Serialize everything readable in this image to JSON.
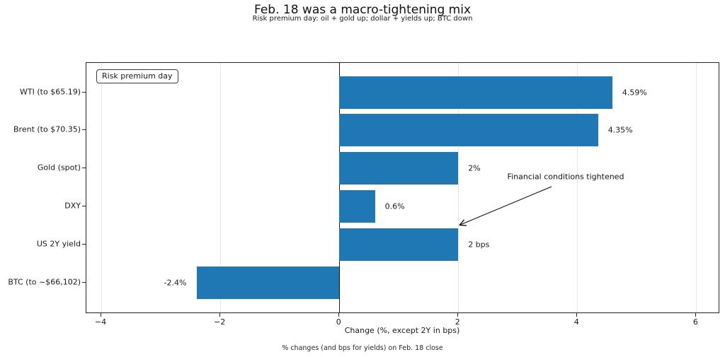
{
  "chart_data": {
    "type": "bar",
    "orientation": "horizontal",
    "title": "Feb. 18 was a macro-tightening mix",
    "subtitle": "Risk premium day: oil + gold up; dollar + yields up; BTC down",
    "xlabel": "Change (%, except 2Y in bps)",
    "footnote": "% changes (and bps for yields) on Feb. 18 close",
    "legend_label": "Risk premium day",
    "legend_position": "upper-left",
    "annotation": {
      "text": "Financial conditions tightened",
      "points_to": "US 2Y yield bar tip at x=2"
    },
    "categories": [
      "WTI (to $65.19)",
      "Brent (to $70.35)",
      "Gold (spot)",
      "DXY",
      "US 2Y yield",
      "BTC (to ~$66,102)"
    ],
    "values": [
      4.59,
      4.35,
      2,
      0.6,
      2,
      -2.4
    ],
    "value_labels": [
      "4.59%",
      "4.35%",
      "2%",
      "0.6%",
      "2 bps",
      "-2.4%"
    ],
    "xticks": [
      -4,
      -2,
      0,
      2,
      4,
      6
    ],
    "xtick_labels": [
      "−4",
      "−2",
      "0",
      "2",
      "4",
      "6"
    ],
    "xlim": [
      -4.25,
      6.4
    ],
    "grid": true,
    "zero_line": true,
    "bar_color": "#1f77b4"
  }
}
